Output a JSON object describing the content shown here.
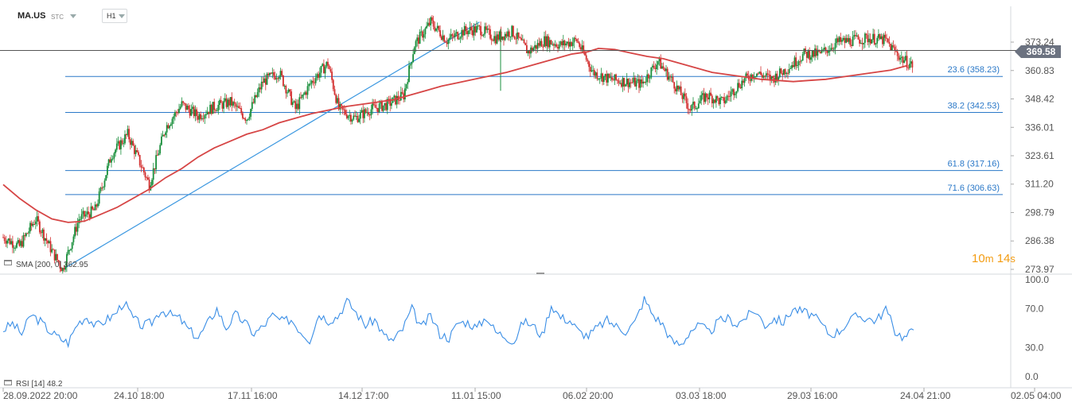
{
  "header": {
    "symbol": "MA.US",
    "subtitle": "STC",
    "timeframe": "H1"
  },
  "price_panel": {
    "sma_label": "SMA",
    "sma_params": "[200, 0]",
    "sma_value": "362.95",
    "current_price": "369.58",
    "timer_minutes": "10",
    "timer_m": "m",
    "timer_seconds": "14",
    "timer_s": "s",
    "colors": {
      "candle_up": "#1a8f3c",
      "candle_down": "#d32f2f",
      "sma": "#d64545",
      "fib": "#2a78c8",
      "trend": "#3a97e0",
      "price_line": "#555555"
    }
  },
  "rsi_panel": {
    "label": "RSI",
    "params": "[14]",
    "value": "48.2",
    "color": "#3a8ee6"
  },
  "chart_data": [
    {
      "type": "candlestick",
      "title": "MA.US",
      "timeframe": "H1",
      "x_tick_labels": [
        "28.09.2022 20:00",
        "24.10 18:00",
        "17.11 16:00",
        "14.12 17:00",
        "11.01 15:00",
        "06.02 20:00",
        "03.03 18:00",
        "29.03 16:00",
        "24.04 21:00",
        "02.05 04:00"
      ],
      "y_tick_labels": [
        "373.24",
        "360.83",
        "348.42",
        "336.01",
        "323.61",
        "311.20",
        "298.79",
        "286.38",
        "273.97"
      ],
      "ylim": [
        273.97,
        379.0
      ],
      "price_path": [
        [
          0,
          288
        ],
        [
          3,
          284
        ],
        [
          6,
          296
        ],
        [
          9,
          282
        ],
        [
          11,
          273.97
        ],
        [
          14,
          296
        ],
        [
          17,
          300
        ],
        [
          20,
          324
        ],
        [
          23,
          333
        ],
        [
          25,
          322
        ],
        [
          27,
          311
        ],
        [
          30,
          336
        ],
        [
          33,
          346
        ],
        [
          36,
          341
        ],
        [
          39,
          345
        ],
        [
          42,
          347
        ],
        [
          45,
          340
        ],
        [
          48,
          356
        ],
        [
          51,
          360
        ],
        [
          54,
          344
        ],
        [
          57,
          356
        ],
        [
          60,
          364
        ],
        [
          62,
          344
        ],
        [
          65,
          340
        ],
        [
          68,
          344
        ],
        [
          71,
          346
        ],
        [
          74,
          350
        ],
        [
          76,
          372
        ],
        [
          79,
          382
        ],
        [
          82,
          374
        ],
        [
          85,
          378
        ],
        [
          88,
          379
        ],
        [
          91,
          375
        ],
        [
          94,
          378
        ],
        [
          97,
          369
        ],
        [
          100,
          374
        ],
        [
          103,
          372
        ],
        [
          106,
          374
        ],
        [
          109,
          360
        ],
        [
          112,
          357
        ],
        [
          115,
          356
        ],
        [
          118,
          355
        ],
        [
          121,
          365
        ],
        [
          124,
          355
        ],
        [
          127,
          344
        ],
        [
          130,
          350
        ],
        [
          133,
          347
        ],
        [
          136,
          355
        ],
        [
          139,
          360
        ],
        [
          142,
          357
        ],
        [
          145,
          362
        ],
        [
          148,
          368
        ],
        [
          151,
          368
        ],
        [
          154,
          373
        ],
        [
          157,
          374
        ],
        [
          160,
          375
        ],
        [
          163,
          374
        ],
        [
          166,
          366
        ],
        [
          168,
          363
        ]
      ],
      "sma200_path": [
        [
          0,
          311
        ],
        [
          3,
          305
        ],
        [
          6,
          300
        ],
        [
          9,
          296
        ],
        [
          12,
          294.5
        ],
        [
          15,
          295
        ],
        [
          18,
          298
        ],
        [
          21,
          301
        ],
        [
          24,
          305
        ],
        [
          27,
          309
        ],
        [
          30,
          314
        ],
        [
          33,
          318
        ],
        [
          36,
          323
        ],
        [
          39,
          327
        ],
        [
          42,
          330
        ],
        [
          45,
          333
        ],
        [
          48,
          335
        ],
        [
          51,
          338
        ],
        [
          54,
          340
        ],
        [
          57,
          342
        ],
        [
          60,
          343.5
        ],
        [
          63,
          345
        ],
        [
          66,
          346
        ],
        [
          69,
          347
        ],
        [
          72,
          348
        ],
        [
          75,
          350
        ],
        [
          78,
          352
        ],
        [
          81,
          354
        ],
        [
          84,
          355.5
        ],
        [
          87,
          357
        ],
        [
          90,
          358.5
        ],
        [
          93,
          360
        ],
        [
          96,
          362
        ],
        [
          99,
          364
        ],
        [
          102,
          366
        ],
        [
          105,
          368
        ],
        [
          108,
          369
        ],
        [
          110,
          370.5
        ],
        [
          113,
          370
        ],
        [
          116,
          368.5
        ],
        [
          119,
          367
        ],
        [
          122,
          366
        ],
        [
          125,
          364
        ],
        [
          128,
          362
        ],
        [
          131,
          360
        ],
        [
          134,
          359
        ],
        [
          137,
          358
        ],
        [
          140,
          357
        ],
        [
          143,
          356.5
        ],
        [
          146,
          356
        ],
        [
          149,
          356.5
        ],
        [
          152,
          357
        ],
        [
          155,
          358
        ],
        [
          158,
          359
        ],
        [
          161,
          360
        ],
        [
          164,
          361
        ],
        [
          167,
          362.95
        ]
      ],
      "fib_levels": [
        {
          "label": "23.6 (358.23)",
          "value": 358.23
        },
        {
          "label": "38.2 (342.53)",
          "value": 342.53
        },
        {
          "label": "61.8 (317.16)",
          "value": 317.16
        },
        {
          "label": "71.6 (306.63)",
          "value": 306.63
        }
      ],
      "horizontal_price_line": 369.58,
      "trendline": [
        [
          11,
          273.97
        ],
        [
          88,
          382
        ]
      ],
      "legend": [
        "SMA [200, 0] 362.95"
      ]
    },
    {
      "type": "line",
      "title": "RSI [14]",
      "x_tick_labels": [
        "28.09.2022 20:00",
        "24.10 18:00",
        "17.11 16:00",
        "14.12 17:00",
        "11.01 15:00",
        "06.02 20:00",
        "03.03 18:00",
        "29.03 16:00",
        "24.04 21:00",
        "02.05 04:00"
      ],
      "y_tick_labels": [
        "100.0",
        "70.0",
        "30.0",
        "0.0"
      ],
      "ylim": [
        0,
        100
      ],
      "series": [
        {
          "name": "RSI [14]",
          "values": [
            48,
            55,
            44,
            64,
            57,
            47,
            40,
            35,
            55,
            62,
            52,
            58,
            64,
            77,
            60,
            52,
            56,
            69,
            64,
            60,
            48,
            40,
            55,
            70,
            50,
            64,
            56,
            44,
            52,
            63,
            57,
            59,
            47,
            38,
            65,
            58,
            62,
            78,
            66,
            53,
            59,
            42,
            37,
            49,
            70,
            50,
            63,
            44,
            40,
            56,
            56,
            50,
            62,
            46,
            42,
            36,
            57,
            53,
            42,
            74,
            61,
            58,
            46,
            42,
            51,
            58,
            52,
            47,
            56,
            80,
            63,
            54,
            36,
            33,
            48,
            53,
            45,
            57,
            60,
            54,
            62,
            68,
            53,
            60,
            56,
            70,
            67,
            64,
            55,
            43,
            47,
            57,
            63,
            60,
            58,
            70,
            47,
            40,
            48.2
          ]
        }
      ]
    }
  ]
}
